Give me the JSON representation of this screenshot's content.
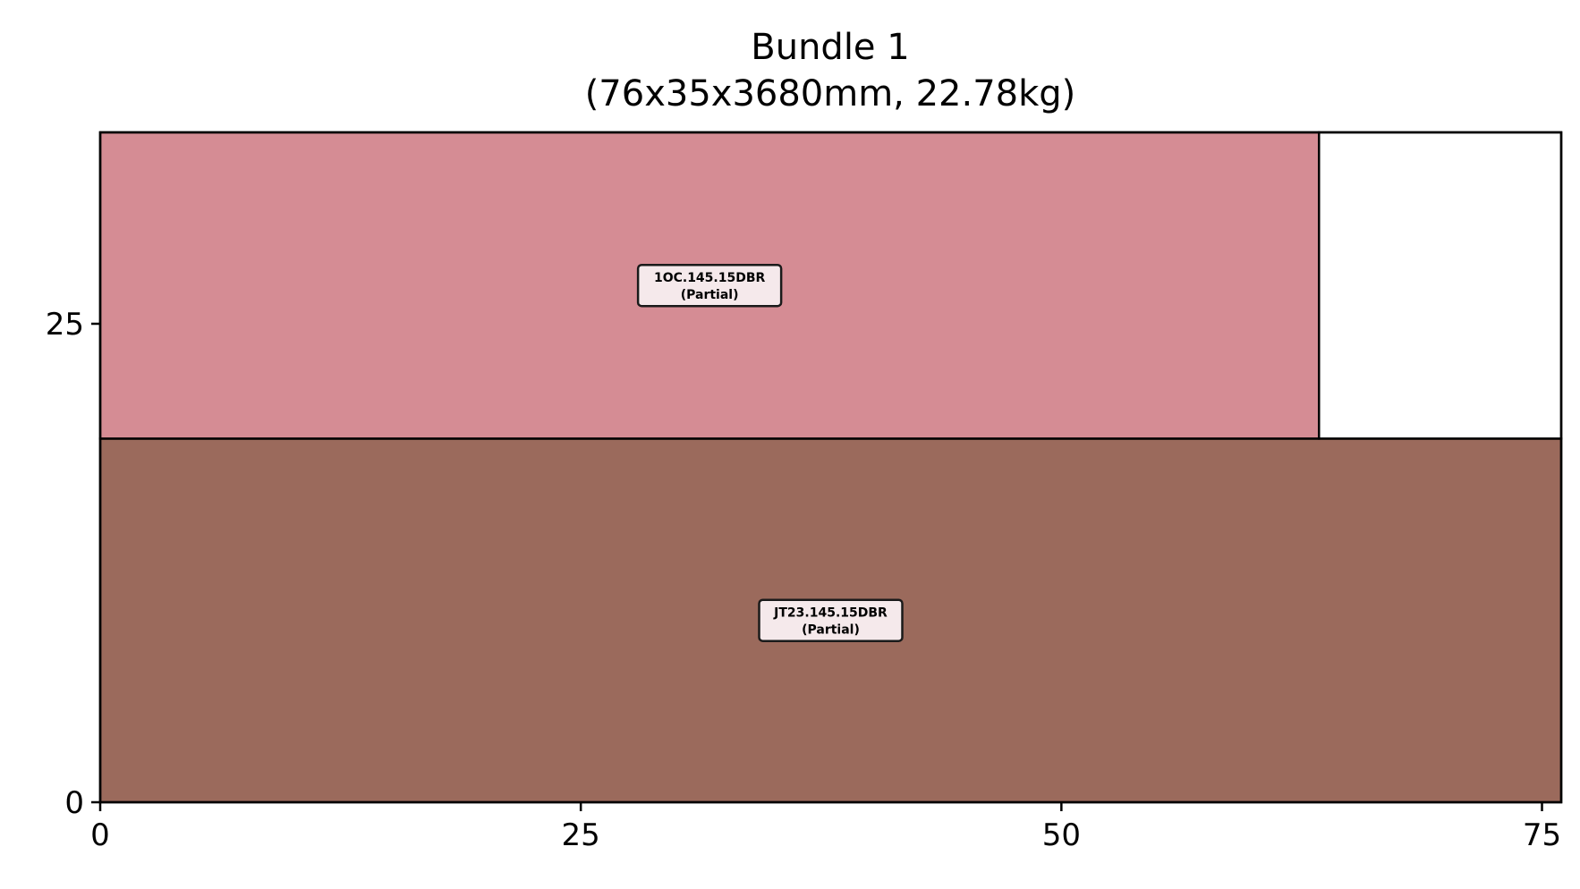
{
  "chart_data": {
    "type": "bar",
    "title": "Bundle 1",
    "subtitle": "(76x35x3680mm, 22.78kg)",
    "xlabel": "",
    "ylabel": "",
    "xlim": [
      0,
      76
    ],
    "ylim": [
      0,
      35
    ],
    "xticks": [
      0,
      25,
      50,
      75
    ],
    "yticks": [
      0,
      25
    ],
    "grid": false,
    "rectangles": [
      {
        "name": "JT23.145.15DBR",
        "status": "(Partial)",
        "x": 0,
        "y": 0,
        "width": 76,
        "height": 19,
        "color": "#9b6a5c"
      },
      {
        "name": "1OC.145.15DBR",
        "status": "(Partial)",
        "x": 0,
        "y": 19,
        "width": 63.4,
        "height": 16,
        "color": "#d58c94"
      },
      {
        "name": "",
        "status": "",
        "x": 63.4,
        "y": 19,
        "width": 12.6,
        "height": 16,
        "color": "#ffffff"
      }
    ],
    "label_box": {
      "fill": "#f5e9eb",
      "stroke": "#1a1a1a"
    }
  }
}
